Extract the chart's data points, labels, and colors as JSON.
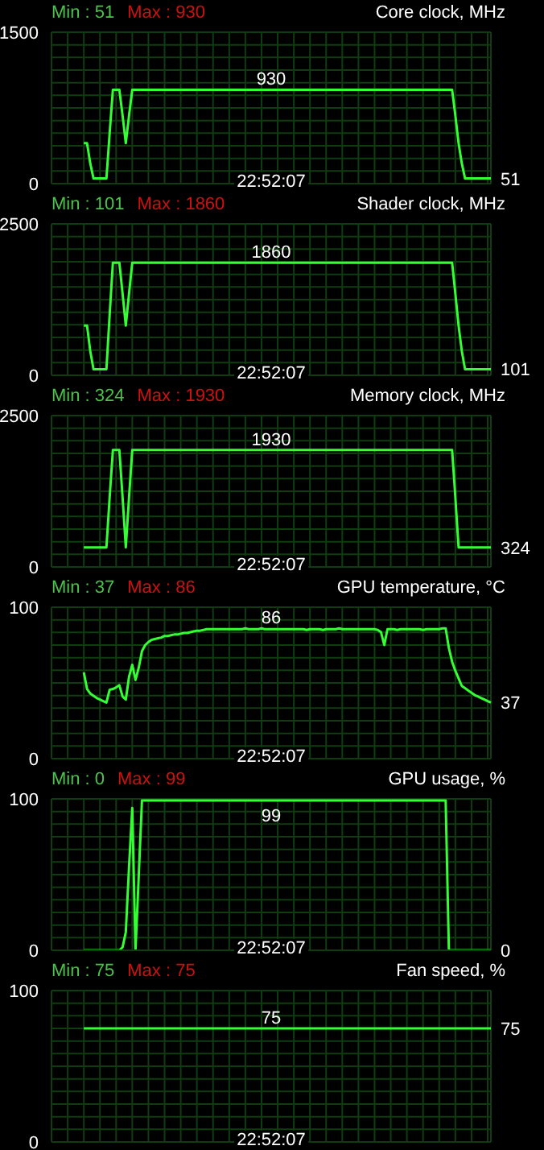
{
  "chart_data": [
    {
      "type": "line",
      "title": "Core clock, MHz",
      "annotations": [
        "Min : 51",
        "Max : 930",
        "22:52:07",
        "51",
        {
          "text": "930",
          "y": 930
        }
      ],
      "categories": [
        null,
        null,
        null,
        null,
        null,
        null,
        null,
        null,
        null,
        null,
        null,
        null,
        null,
        null,
        null,
        null,
        null,
        null,
        null,
        null,
        null,
        null,
        null,
        null,
        null,
        null,
        null,
        null,
        null,
        null,
        null,
        null,
        null,
        null,
        null,
        null,
        null,
        null,
        null,
        null,
        null,
        null,
        null,
        null,
        null,
        null,
        null,
        null,
        null,
        null,
        null,
        null,
        null,
        null,
        null,
        null,
        null,
        null,
        null,
        null,
        null,
        null,
        null,
        null,
        null,
        null,
        null,
        null,
        null,
        null,
        null,
        null,
        null,
        null,
        null,
        null,
        null,
        null,
        null,
        null,
        null,
        null,
        null,
        null,
        null,
        null,
        null,
        null,
        null,
        null,
        null,
        null,
        null,
        null,
        null,
        null,
        null,
        null,
        null,
        null,
        null,
        null,
        null,
        null,
        null,
        null,
        null,
        null,
        null,
        null,
        null,
        null,
        null,
        null,
        null,
        null,
        null,
        null,
        null,
        null,
        null,
        null,
        null,
        null,
        null,
        null,
        null,
        null,
        null,
        null,
        null,
        null,
        null,
        null,
        null,
        null,
        null
      ],
      "values": [
        null,
        null,
        null,
        null,
        null,
        null,
        null,
        null,
        null,
        null,
        400,
        400,
        200,
        51,
        51,
        51,
        51,
        51,
        500,
        930,
        930,
        930,
        675,
        400,
        675,
        930,
        930,
        930,
        930,
        930,
        930,
        930,
        930,
        930,
        930,
        930,
        930,
        930,
        930,
        930,
        930,
        930,
        930,
        930,
        930,
        930,
        930,
        930,
        930,
        930,
        930,
        930,
        930,
        930,
        930,
        930,
        930,
        930,
        930,
        930,
        930,
        930,
        930,
        930,
        930,
        930,
        930,
        930,
        930,
        930,
        930,
        930,
        930,
        930,
        930,
        930,
        930,
        930,
        930,
        930,
        930,
        930,
        930,
        930,
        930,
        930,
        930,
        930,
        930,
        930,
        930,
        930,
        930,
        930,
        930,
        930,
        930,
        930,
        930,
        930,
        930,
        930,
        930,
        930,
        930,
        930,
        930,
        930,
        930,
        930,
        930,
        930,
        930,
        930,
        930,
        930,
        930,
        930,
        930,
        930,
        930,
        930,
        930,
        930,
        930,
        675,
        400,
        200,
        51,
        51,
        51,
        51,
        51,
        51,
        51,
        51,
        51
      ],
      "color": "#33ff33",
      "ylim": [
        0,
        1500
      ],
      "grid": true,
      "legend": false,
      "marker": "none",
      "tick_labels": "y",
      "yticks": [
        0,
        {
          "value": 125,
          "label": null
        },
        {
          "value": 250,
          "label": null
        },
        {
          "value": 375,
          "label": null
        },
        {
          "value": 500,
          "label": null
        },
        {
          "value": 625,
          "label": null
        },
        {
          "value": 750,
          "label": null
        },
        {
          "value": 875,
          "label": null
        },
        {
          "value": 1000,
          "label": null
        },
        {
          "value": 1125,
          "label": null
        },
        {
          "value": 1250,
          "label": null
        },
        {
          "value": 1375,
          "label": null
        },
        1500
      ]
    },
    {
      "type": "line",
      "title": "Shader clock, MHz",
      "annotations": [
        "Min : 101",
        "Max : 1860",
        "22:52:07",
        "101",
        {
          "text": "1860",
          "y": 1860
        }
      ],
      "categories": [
        null,
        null,
        null,
        null,
        null,
        null,
        null,
        null,
        null,
        null,
        null,
        null,
        null,
        null,
        null,
        null,
        null,
        null,
        null,
        null,
        null,
        null,
        null,
        null,
        null,
        null,
        null,
        null,
        null,
        null,
        null,
        null,
        null,
        null,
        null,
        null,
        null,
        null,
        null,
        null,
        null,
        null,
        null,
        null,
        null,
        null,
        null,
        null,
        null,
        null,
        null,
        null,
        null,
        null,
        null,
        null,
        null,
        null,
        null,
        null,
        null,
        null,
        null,
        null,
        null,
        null,
        null,
        null,
        null,
        null,
        null,
        null,
        null,
        null,
        null,
        null,
        null,
        null,
        null,
        null,
        null,
        null,
        null,
        null,
        null,
        null,
        null,
        null,
        null,
        null,
        null,
        null,
        null,
        null,
        null,
        null,
        null,
        null,
        null,
        null,
        null,
        null,
        null,
        null,
        null,
        null,
        null,
        null,
        null,
        null,
        null,
        null,
        null,
        null,
        null,
        null,
        null,
        null,
        null,
        null,
        null,
        null,
        null,
        null,
        null,
        null,
        null,
        null,
        null,
        null,
        null,
        null,
        null,
        null,
        null,
        null,
        null
      ],
      "values": [
        null,
        null,
        null,
        null,
        null,
        null,
        null,
        null,
        null,
        null,
        820,
        820,
        400,
        101,
        101,
        101,
        101,
        101,
        1000,
        1860,
        1860,
        1860,
        1350,
        820,
        1350,
        1860,
        1860,
        1860,
        1860,
        1860,
        1860,
        1860,
        1860,
        1860,
        1860,
        1860,
        1860,
        1860,
        1860,
        1860,
        1860,
        1860,
        1860,
        1860,
        1860,
        1860,
        1860,
        1860,
        1860,
        1860,
        1860,
        1860,
        1860,
        1860,
        1860,
        1860,
        1860,
        1860,
        1860,
        1860,
        1860,
        1860,
        1860,
        1860,
        1860,
        1860,
        1860,
        1860,
        1860,
        1860,
        1860,
        1860,
        1860,
        1860,
        1860,
        1860,
        1860,
        1860,
        1860,
        1860,
        1860,
        1860,
        1860,
        1860,
        1860,
        1860,
        1860,
        1860,
        1860,
        1860,
        1860,
        1860,
        1860,
        1860,
        1860,
        1860,
        1860,
        1860,
        1860,
        1860,
        1860,
        1860,
        1860,
        1860,
        1860,
        1860,
        1860,
        1860,
        1860,
        1860,
        1860,
        1860,
        1860,
        1860,
        1860,
        1860,
        1860,
        1860,
        1860,
        1860,
        1860,
        1860,
        1860,
        1860,
        1860,
        1350,
        820,
        400,
        101,
        101,
        101,
        101,
        101,
        101,
        101,
        101,
        101
      ],
      "color": "#33ff33",
      "ylim": [
        0,
        2500
      ],
      "grid": true,
      "legend": false,
      "marker": "none",
      "tick_labels": "y",
      "yticks": [
        0,
        {
          "value": 208.333,
          "label": null
        },
        {
          "value": 416.667,
          "label": null
        },
        {
          "value": 625,
          "label": null
        },
        {
          "value": 833.333,
          "label": null
        },
        {
          "value": 1041.667,
          "label": null
        },
        {
          "value": 1250,
          "label": null
        },
        {
          "value": 1458.333,
          "label": null
        },
        {
          "value": 1666.667,
          "label": null
        },
        {
          "value": 1875,
          "label": null
        },
        {
          "value": 2083.333,
          "label": null
        },
        {
          "value": 2291.667,
          "label": null
        },
        2500
      ]
    },
    {
      "type": "line",
      "title": "Memory clock, MHz",
      "annotations": [
        "Min : 324",
        "Max : 1930",
        "22:52:07",
        "324",
        {
          "text": "1930",
          "y": 1930
        }
      ],
      "categories": [
        null,
        null,
        null,
        null,
        null,
        null,
        null,
        null,
        null,
        null,
        null,
        null,
        null,
        null,
        null,
        null,
        null,
        null,
        null,
        null,
        null,
        null,
        null,
        null,
        null,
        null,
        null,
        null,
        null,
        null,
        null,
        null,
        null,
        null,
        null,
        null,
        null,
        null,
        null,
        null,
        null,
        null,
        null,
        null,
        null,
        null,
        null,
        null,
        null,
        null,
        null,
        null,
        null,
        null,
        null,
        null,
        null,
        null,
        null,
        null,
        null,
        null,
        null,
        null,
        null,
        null,
        null,
        null,
        null,
        null,
        null,
        null,
        null,
        null,
        null,
        null,
        null,
        null,
        null,
        null,
        null,
        null,
        null,
        null,
        null,
        null,
        null,
        null,
        null,
        null,
        null,
        null,
        null,
        null,
        null,
        null,
        null,
        null,
        null,
        null,
        null,
        null,
        null,
        null,
        null,
        null,
        null,
        null,
        null,
        null,
        null,
        null,
        null,
        null,
        null,
        null,
        null,
        null,
        null,
        null,
        null,
        null,
        null,
        null,
        null,
        null,
        null,
        null,
        null,
        null,
        null,
        null,
        null,
        null,
        null,
        null,
        null
      ],
      "values": [
        null,
        null,
        null,
        null,
        null,
        null,
        null,
        null,
        null,
        null,
        324,
        324,
        324,
        324,
        324,
        324,
        324,
        324,
        1150,
        1930,
        1930,
        1930,
        1150,
        324,
        1150,
        1930,
        1930,
        1930,
        1930,
        1930,
        1930,
        1930,
        1930,
        1930,
        1930,
        1930,
        1930,
        1930,
        1930,
        1930,
        1930,
        1930,
        1930,
        1930,
        1930,
        1930,
        1930,
        1930,
        1930,
        1930,
        1930,
        1930,
        1930,
        1930,
        1930,
        1930,
        1930,
        1930,
        1930,
        1930,
        1930,
        1930,
        1930,
        1930,
        1930,
        1930,
        1930,
        1930,
        1930,
        1930,
        1930,
        1930,
        1930,
        1930,
        1930,
        1930,
        1930,
        1930,
        1930,
        1930,
        1930,
        1930,
        1930,
        1930,
        1930,
        1930,
        1930,
        1930,
        1930,
        1930,
        1930,
        1930,
        1930,
        1930,
        1930,
        1930,
        1930,
        1930,
        1930,
        1930,
        1930,
        1930,
        1930,
        1930,
        1930,
        1930,
        1930,
        1930,
        1930,
        1930,
        1930,
        1930,
        1930,
        1930,
        1930,
        1930,
        1930,
        1930,
        1930,
        1930,
        1930,
        1930,
        1930,
        1930,
        1930,
        1150,
        324,
        324,
        324,
        324,
        324,
        324,
        324,
        324,
        324,
        324,
        324
      ],
      "color": "#33ff33",
      "ylim": [
        0,
        2500
      ],
      "grid": true,
      "legend": false,
      "marker": "none",
      "tick_labels": "y",
      "yticks": [
        0,
        {
          "value": 208.333,
          "label": null
        },
        {
          "value": 416.667,
          "label": null
        },
        {
          "value": 625,
          "label": null
        },
        {
          "value": 833.333,
          "label": null
        },
        {
          "value": 1041.667,
          "label": null
        },
        {
          "value": 1250,
          "label": null
        },
        {
          "value": 1458.333,
          "label": null
        },
        {
          "value": 1666.667,
          "label": null
        },
        {
          "value": 1875,
          "label": null
        },
        {
          "value": 2083.333,
          "label": null
        },
        {
          "value": 2291.667,
          "label": null
        },
        2500
      ]
    },
    {
      "type": "line",
      "title": "GPU temperature, °C",
      "annotations": [
        "Min : 37",
        "Max : 86",
        "22:52:07",
        "37",
        {
          "text": "86",
          "y": 86
        }
      ],
      "categories": [
        null,
        null,
        null,
        null,
        null,
        null,
        null,
        null,
        null,
        null,
        null,
        null,
        null,
        null,
        null,
        null,
        null,
        null,
        null,
        null,
        null,
        null,
        null,
        null,
        null,
        null,
        null,
        null,
        null,
        null,
        null,
        null,
        null,
        null,
        null,
        null,
        null,
        null,
        null,
        null,
        null,
        null,
        null,
        null,
        null,
        null,
        null,
        null,
        null,
        null,
        null,
        null,
        null,
        null,
        null,
        null,
        null,
        null,
        null,
        null,
        null,
        null,
        null,
        null,
        null,
        null,
        null,
        null,
        null,
        null,
        null,
        null,
        null,
        null,
        null,
        null,
        null,
        null,
        null,
        null,
        null,
        null,
        null,
        null,
        null,
        null,
        null,
        null,
        null,
        null,
        null,
        null,
        null,
        null,
        null,
        null,
        null,
        null,
        null,
        null,
        null,
        null,
        null,
        null,
        null,
        null,
        null,
        null,
        null,
        null,
        null,
        null,
        null,
        null,
        null,
        null,
        null,
        null,
        null,
        null,
        null,
        null,
        null,
        null,
        null,
        null,
        null,
        null,
        null,
        null,
        null,
        null,
        null,
        null,
        null,
        null,
        null
      ],
      "values": [
        null,
        null,
        null,
        null,
        null,
        null,
        null,
        null,
        null,
        null,
        57,
        46,
        43,
        41.5,
        40,
        39,
        38,
        37,
        45.5,
        46,
        47,
        48.5,
        41,
        39,
        54,
        62,
        52,
        60,
        71,
        75,
        77,
        78.5,
        79,
        79.5,
        80,
        81,
        81,
        81.5,
        82,
        82,
        82.5,
        83,
        83,
        83.5,
        84,
        84.5,
        84.5,
        85,
        85.5,
        85.5,
        85.5,
        85.5,
        85.5,
        85.5,
        85.5,
        85.5,
        85.5,
        85.5,
        85.5,
        85.5,
        86,
        85.5,
        85.5,
        85.5,
        85.5,
        86,
        85.5,
        85.5,
        85.5,
        85.5,
        85.5,
        85.5,
        85.5,
        85.5,
        85.5,
        85.5,
        85.5,
        85.5,
        85.5,
        85,
        85.5,
        85.5,
        85.5,
        85.5,
        85,
        85.5,
        85.5,
        85.5,
        85.5,
        86,
        85.5,
        85.5,
        85.5,
        85.5,
        85.5,
        85.5,
        85.5,
        85.5,
        85.5,
        85.5,
        85.5,
        85,
        83.5,
        75,
        85.5,
        85.5,
        85.5,
        85,
        85.5,
        85.5,
        85.5,
        85.5,
        85.5,
        85.5,
        85.5,
        85,
        85.5,
        85.5,
        85.5,
        85.5,
        85.5,
        86,
        86,
        73,
        64,
        58,
        53,
        48,
        46.5,
        45,
        43.5,
        42,
        41,
        40,
        39,
        38,
        37
      ],
      "color": "#33ff33",
      "ylim": [
        0,
        100
      ],
      "grid": true,
      "legend": false,
      "marker": "none",
      "tick_labels": "y",
      "yticks": [
        0,
        {
          "value": 8.333,
          "label": null
        },
        {
          "value": 16.667,
          "label": null
        },
        {
          "value": 25,
          "label": null
        },
        {
          "value": 33.333,
          "label": null
        },
        {
          "value": 41.667,
          "label": null
        },
        {
          "value": 50,
          "label": null
        },
        {
          "value": 58.333,
          "label": null
        },
        {
          "value": 66.667,
          "label": null
        },
        {
          "value": 75,
          "label": null
        },
        {
          "value": 83.333,
          "label": null
        },
        {
          "value": 91.667,
          "label": null
        },
        100
      ]
    },
    {
      "type": "line",
      "title": "GPU usage, %",
      "annotations": [
        "Min : 0",
        "Max : 99",
        "22:52:07",
        "0",
        {
          "text": "99",
          "y": 99
        }
      ],
      "categories": [
        null,
        null,
        null,
        null,
        null,
        null,
        null,
        null,
        null,
        null,
        null,
        null,
        null,
        null,
        null,
        null,
        null,
        null,
        null,
        null,
        null,
        null,
        null,
        null,
        null,
        null,
        null,
        null,
        null,
        null,
        null,
        null,
        null,
        null,
        null,
        null,
        null,
        null,
        null,
        null,
        null,
        null,
        null,
        null,
        null,
        null,
        null,
        null,
        null,
        null,
        null,
        null,
        null,
        null,
        null,
        null,
        null,
        null,
        null,
        null,
        null,
        null,
        null,
        null,
        null,
        null,
        null,
        null,
        null,
        null,
        null,
        null,
        null,
        null,
        null,
        null,
        null,
        null,
        null,
        null,
        null,
        null,
        null,
        null,
        null,
        null,
        null,
        null,
        null,
        null,
        null,
        null,
        null,
        null,
        null,
        null,
        null,
        null,
        null,
        null,
        null,
        null,
        null,
        null,
        null,
        null,
        null,
        null,
        null,
        null,
        null,
        null,
        null,
        null,
        null,
        null,
        null,
        null,
        null,
        null,
        null,
        null,
        null,
        null,
        null,
        null,
        null,
        null,
        null,
        null,
        null,
        null,
        null,
        null,
        null,
        null,
        null
      ],
      "values": [
        null,
        null,
        null,
        null,
        null,
        null,
        null,
        null,
        null,
        null,
        0,
        0,
        0,
        0,
        0,
        0,
        0,
        0,
        0,
        0,
        0,
        0,
        2,
        12,
        55,
        94,
        0,
        49,
        99,
        99,
        99,
        99,
        99,
        99,
        99,
        99,
        99,
        99,
        99,
        99,
        99,
        99,
        99,
        99,
        99,
        99,
        99,
        99,
        99,
        99,
        99,
        99,
        99,
        99,
        99,
        99,
        99,
        99,
        99,
        99,
        99,
        99,
        99,
        99,
        99,
        99,
        99,
        99,
        99,
        99,
        99,
        99,
        99,
        99,
        99,
        99,
        99,
        99,
        99,
        99,
        99,
        99,
        99,
        99,
        99,
        99,
        99,
        99,
        99,
        99,
        99,
        99,
        99,
        99,
        99,
        99,
        99,
        99,
        99,
        99,
        99,
        99,
        99,
        99,
        99,
        99,
        99,
        99,
        99,
        99,
        99,
        99,
        99,
        99,
        99,
        99,
        99,
        99,
        99,
        99,
        99,
        99,
        99,
        0,
        0,
        0,
        0,
        0,
        0,
        0,
        0,
        0,
        0,
        0,
        0,
        0,
        0
      ],
      "color": "#33ff33",
      "ylim": [
        0,
        100
      ],
      "grid": true,
      "legend": false,
      "marker": "none",
      "tick_labels": "y",
      "yticks": [
        0,
        {
          "value": 8.333,
          "label": null
        },
        {
          "value": 16.667,
          "label": null
        },
        {
          "value": 25,
          "label": null
        },
        {
          "value": 33.333,
          "label": null
        },
        {
          "value": 41.667,
          "label": null
        },
        {
          "value": 50,
          "label": null
        },
        {
          "value": 58.333,
          "label": null
        },
        {
          "value": 66.667,
          "label": null
        },
        {
          "value": 75,
          "label": null
        },
        {
          "value": 83.333,
          "label": null
        },
        {
          "value": 91.667,
          "label": null
        },
        100
      ]
    },
    {
      "type": "line",
      "title": "Fan speed, %",
      "annotations": [
        "Min : 75",
        "Max : 75",
        "22:52:07",
        "75",
        {
          "text": "75",
          "y": 75
        }
      ],
      "categories": [
        null,
        null,
        null,
        null,
        null,
        null,
        null,
        null,
        null,
        null,
        null,
        null,
        null,
        null,
        null,
        null,
        null,
        null,
        null,
        null,
        null,
        null,
        null,
        null,
        null,
        null,
        null,
        null,
        null,
        null,
        null,
        null,
        null,
        null,
        null,
        null,
        null,
        null,
        null,
        null,
        null,
        null,
        null,
        null,
        null,
        null,
        null,
        null,
        null,
        null,
        null,
        null,
        null,
        null,
        null,
        null,
        null,
        null,
        null,
        null,
        null,
        null,
        null,
        null,
        null,
        null,
        null,
        null,
        null,
        null,
        null,
        null,
        null,
        null,
        null,
        null,
        null,
        null,
        null,
        null,
        null,
        null,
        null,
        null,
        null,
        null,
        null,
        null,
        null,
        null,
        null,
        null,
        null,
        null,
        null,
        null,
        null,
        null,
        null,
        null,
        null,
        null,
        null,
        null,
        null,
        null,
        null,
        null,
        null,
        null,
        null,
        null,
        null,
        null,
        null,
        null,
        null,
        null,
        null,
        null,
        null,
        null,
        null,
        null,
        null,
        null,
        null,
        null,
        null,
        null,
        null,
        null,
        null,
        null,
        null,
        null,
        null
      ],
      "values": [
        null,
        null,
        null,
        null,
        null,
        null,
        null,
        null,
        null,
        null,
        75,
        75,
        75,
        75,
        75,
        75,
        75,
        75,
        75,
        75,
        75,
        75,
        75,
        75,
        75,
        75,
        75,
        75,
        75,
        75,
        75,
        75,
        75,
        75,
        75,
        75,
        75,
        75,
        75,
        75,
        75,
        75,
        75,
        75,
        75,
        75,
        75,
        75,
        75,
        75,
        75,
        75,
        75,
        75,
        75,
        75,
        75,
        75,
        75,
        75,
        75,
        75,
        75,
        75,
        75,
        75,
        75,
        75,
        75,
        75,
        75,
        75,
        75,
        75,
        75,
        75,
        75,
        75,
        75,
        75,
        75,
        75,
        75,
        75,
        75,
        75,
        75,
        75,
        75,
        75,
        75,
        75,
        75,
        75,
        75,
        75,
        75,
        75,
        75,
        75,
        75,
        75,
        75,
        75,
        75,
        75,
        75,
        75,
        75,
        75,
        75,
        75,
        75,
        75,
        75,
        75,
        75,
        75,
        75,
        75,
        75,
        75,
        75,
        75,
        75,
        75,
        75,
        75,
        75,
        75,
        75,
        75,
        75,
        75,
        75,
        75,
        75
      ],
      "color": "#33ff33",
      "ylim": [
        0,
        100
      ],
      "grid": true,
      "legend": false,
      "marker": "none",
      "tick_labels": "y",
      "yticks": [
        0,
        {
          "value": 8.333,
          "label": null
        },
        {
          "value": 16.667,
          "label": null
        },
        {
          "value": 25,
          "label": null
        },
        {
          "value": 33.333,
          "label": null
        },
        {
          "value": 41.667,
          "label": null
        },
        {
          "value": 50,
          "label": null
        },
        {
          "value": 58.333,
          "label": null
        },
        {
          "value": 66.667,
          "label": null
        },
        {
          "value": 75,
          "label": null
        },
        {
          "value": 83.333,
          "label": null
        },
        {
          "value": 91.667,
          "label": null
        },
        100
      ]
    }
  ]
}
